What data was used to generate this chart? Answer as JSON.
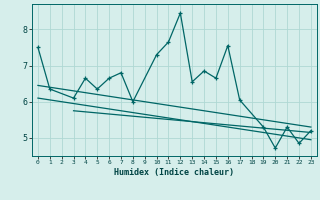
{
  "title": "",
  "xlabel": "Humidex (Indice chaleur)",
  "ylabel": "",
  "bg_color": "#d6eeeb",
  "line_color": "#006666",
  "grid_color": "#afd8d4",
  "xlim": [
    -0.5,
    23.5
  ],
  "ylim": [
    4.5,
    8.7
  ],
  "xticks": [
    0,
    1,
    2,
    3,
    4,
    5,
    6,
    7,
    8,
    9,
    10,
    11,
    12,
    13,
    14,
    15,
    16,
    17,
    18,
    19,
    20,
    21,
    22,
    23
  ],
  "yticks": [
    5,
    6,
    7,
    8
  ],
  "main_x": [
    0,
    1,
    3,
    4,
    5,
    6,
    7,
    8,
    10,
    11,
    12,
    13,
    14,
    15,
    16,
    17,
    19,
    20,
    21,
    22,
    23
  ],
  "main_y": [
    7.5,
    6.35,
    6.1,
    6.65,
    6.35,
    6.65,
    6.8,
    6.0,
    7.3,
    7.65,
    8.45,
    6.55,
    6.85,
    6.65,
    7.55,
    6.05,
    5.3,
    4.72,
    5.3,
    4.85,
    5.2
  ],
  "line1_x": [
    0,
    23
  ],
  "line1_y": [
    6.45,
    5.3
  ],
  "line2_x": [
    0,
    23
  ],
  "line2_y": [
    6.1,
    4.95
  ],
  "line3_x": [
    3,
    23
  ],
  "line3_y": [
    5.75,
    5.15
  ]
}
